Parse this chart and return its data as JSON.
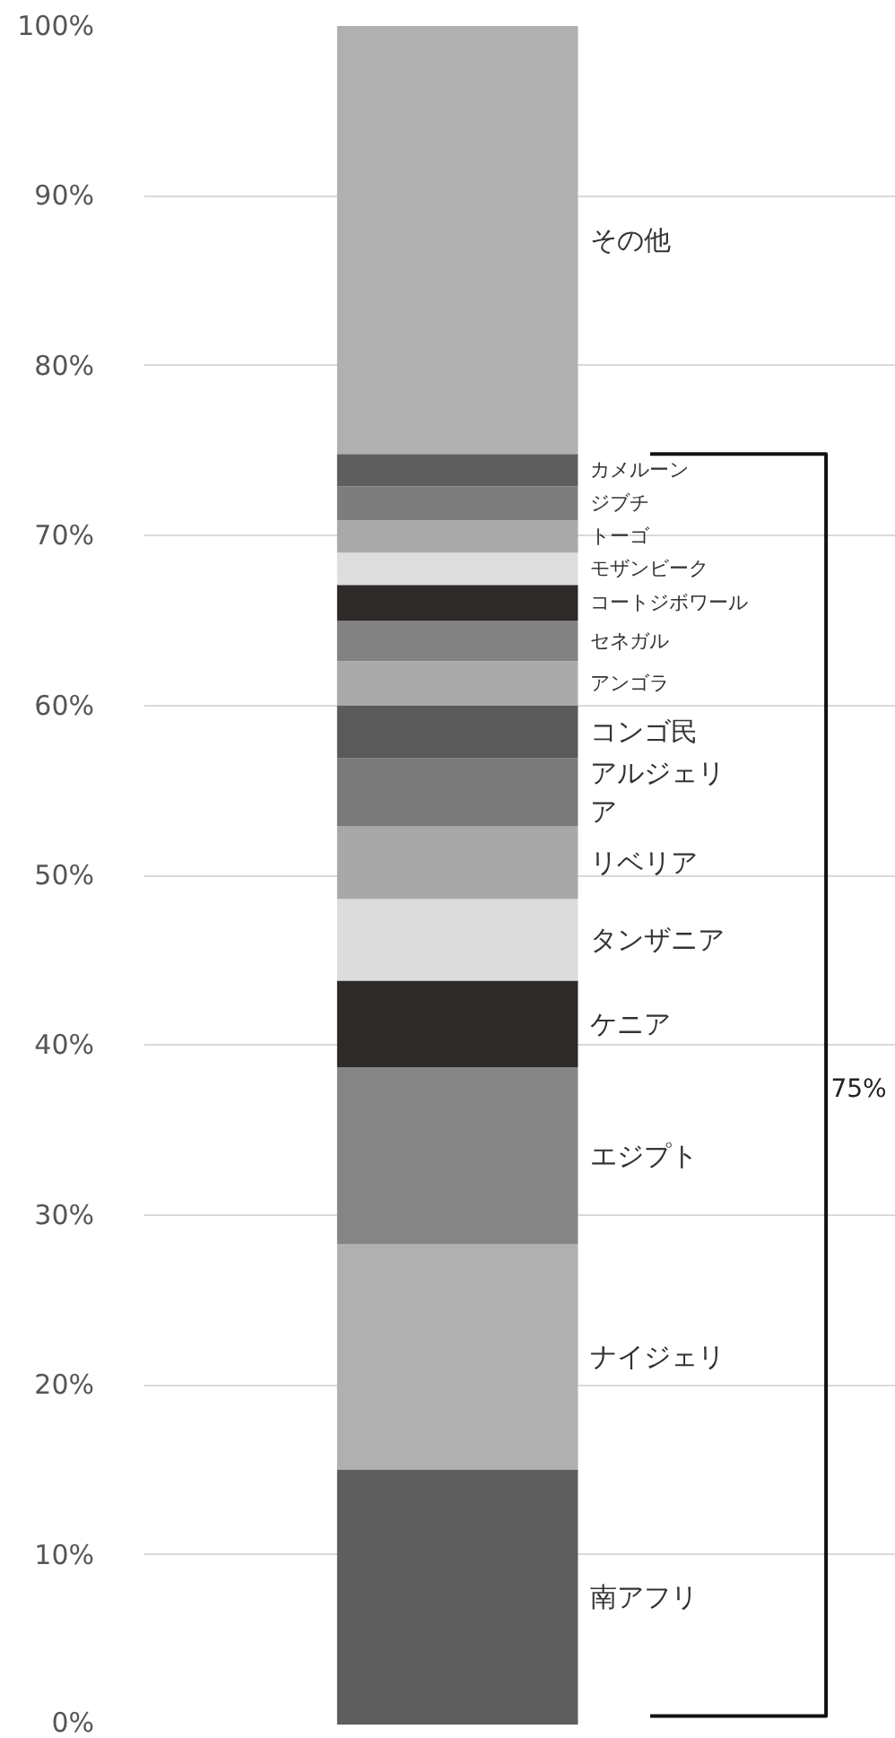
{
  "chart_data": {
    "type": "bar",
    "stacked": true,
    "categories": [
      null
    ],
    "series": [
      {
        "name": "南アフリ",
        "color": "#5f5e5f",
        "values": [
          15.0
        ]
      },
      {
        "name": "ナイジェリ",
        "color": "#b0b0b0",
        "values": [
          13.3
        ]
      },
      {
        "name": "エジプト",
        "color": "#858585",
        "values": [
          10.4
        ]
      },
      {
        "name": "ケニア",
        "color": "#2e2a29",
        "values": [
          5.1
        ]
      },
      {
        "name": "タンザニア",
        "color": "#dcdcdc",
        "values": [
          4.8
        ]
      },
      {
        "name": "リベリア",
        "color": "#a8a8a8",
        "values": [
          4.3
        ]
      },
      {
        "name": "アルジェリア",
        "color": "#7a7a7a",
        "values": [
          4.0
        ]
      },
      {
        "name": "コンゴ民",
        "color": "#5a5a5a",
        "values": [
          3.1
        ]
      },
      {
        "name": "アンゴラ",
        "color": "#aaaaaa",
        "values": [
          2.6
        ]
      },
      {
        "name": "セネガル",
        "color": "#828282",
        "values": [
          2.4
        ]
      },
      {
        "name": "コートジボワール",
        "color": "#2e2a29",
        "values": [
          2.1
        ]
      },
      {
        "name": "モザンビーク",
        "color": "#dedede",
        "values": [
          1.9
        ]
      },
      {
        "name": "トーゴ",
        "color": "#a9a9a9",
        "values": [
          1.9
        ]
      },
      {
        "name": "ジブチ",
        "color": "#7d7d7d",
        "values": [
          2.0
        ]
      },
      {
        "name": "カメルーン",
        "color": "#5e5e5e",
        "values": [
          1.9
        ]
      },
      {
        "name": "その他",
        "color": "#b0b0b0",
        "values": [
          25.2
        ]
      }
    ],
    "ylim": [
      0,
      100
    ],
    "yticks": [
      {
        "value": 0,
        "label": "0%"
      },
      {
        "value": 10,
        "label": "10%"
      },
      {
        "value": 20,
        "label": "20%"
      },
      {
        "value": 30,
        "label": "30%"
      },
      {
        "value": 40,
        "label": "40%"
      },
      {
        "value": 50,
        "label": "50%"
      },
      {
        "value": 60,
        "label": "60%"
      },
      {
        "value": 70,
        "label": "70%"
      },
      {
        "value": 80,
        "label": "80%"
      },
      {
        "value": 90,
        "label": "90%"
      },
      {
        "value": 100,
        "label": "100%"
      }
    ],
    "grid": "y",
    "tick_labels": "y",
    "annotations": [
      "75%"
    ]
  }
}
